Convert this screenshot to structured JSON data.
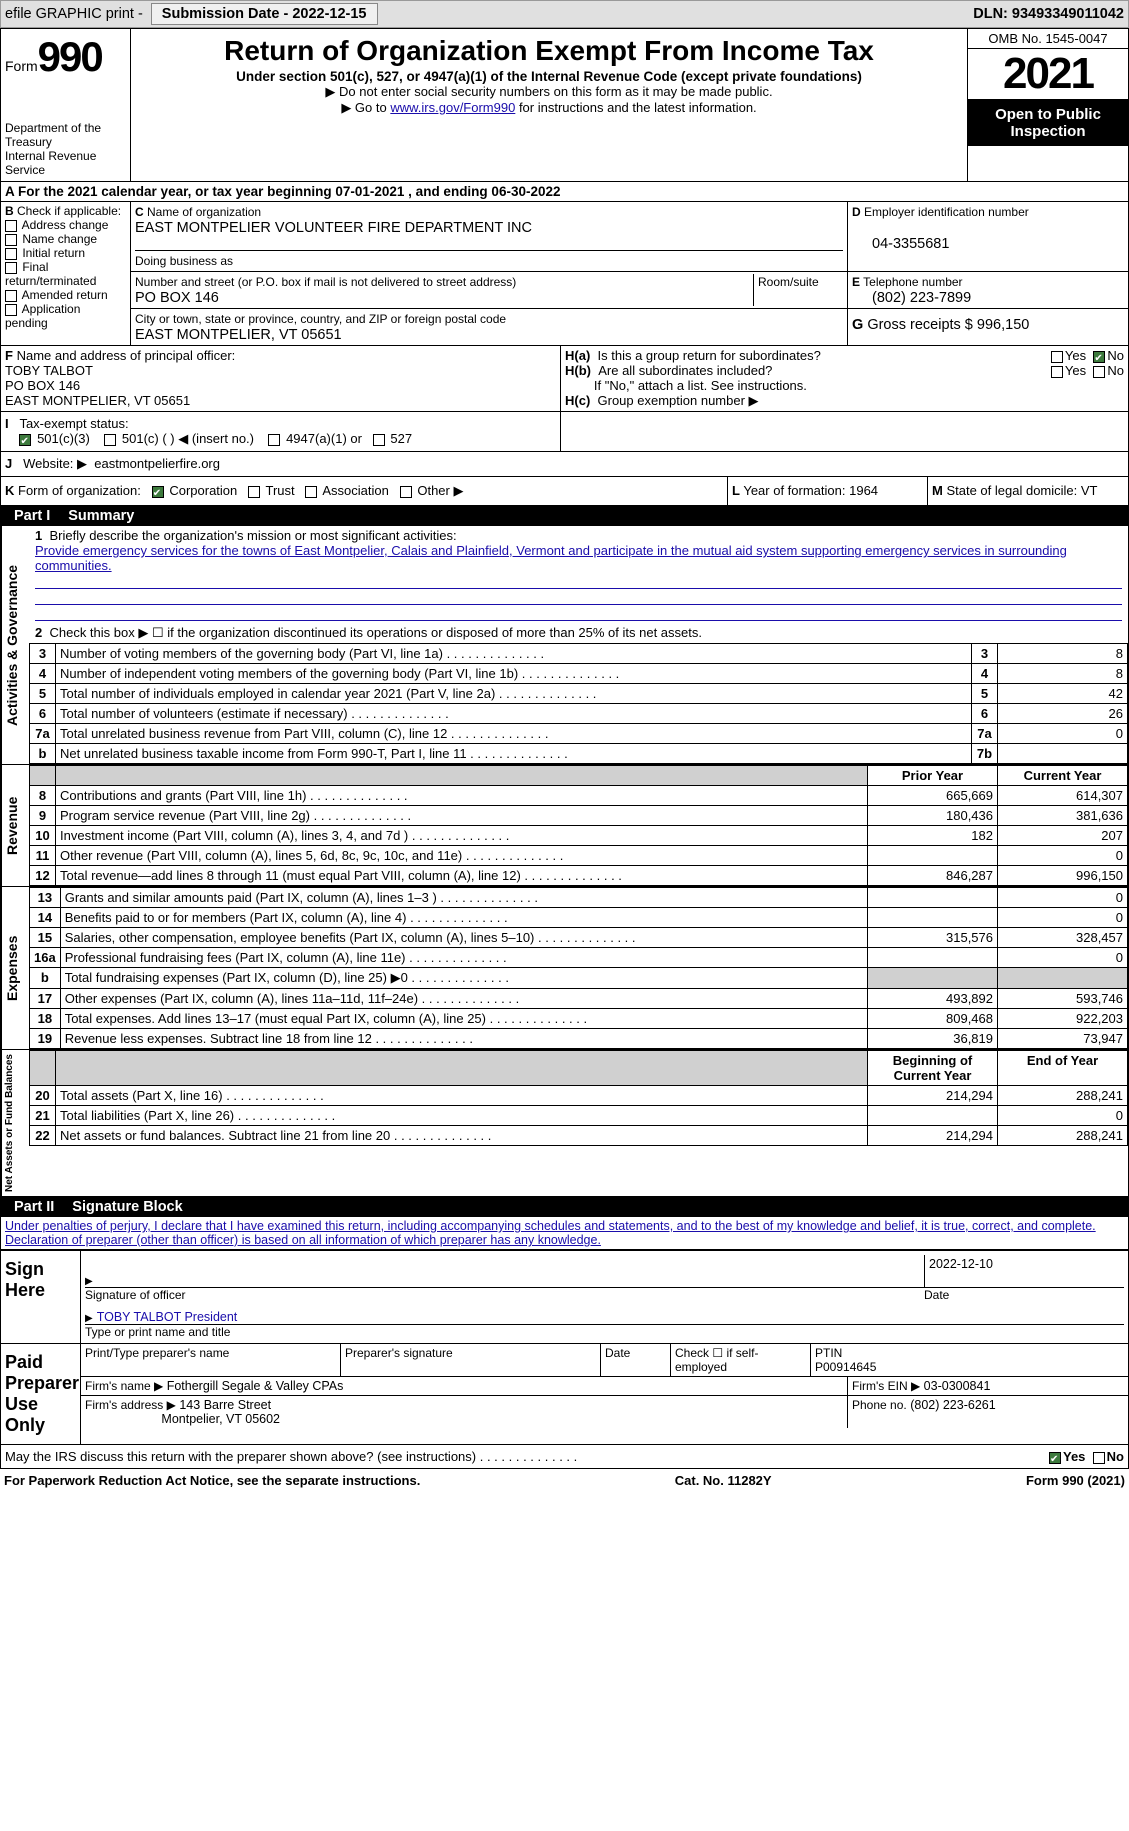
{
  "header": {
    "efile": "efile GRAPHIC print -",
    "submission": "Submission Date - 2022-12-15",
    "dln": "DLN: 93493349011042"
  },
  "form": {
    "form_word": "Form",
    "form_num": "990",
    "dept": "Department of the Treasury",
    "irs": "Internal Revenue Service",
    "title": "Return of Organization Exempt From Income Tax",
    "sub": "Under section 501(c), 527, or 4947(a)(1) of the Internal Revenue Code (except private foundations)",
    "note1": "▶ Do not enter social security numbers on this form as it may be made public.",
    "note2_pre": "▶ Go to ",
    "note2_link": "www.irs.gov/Form990",
    "note2_post": " for instructions and the latest information.",
    "omb": "OMB No. 1545-0047",
    "year": "2021",
    "inspection": "Open to Public Inspection"
  },
  "periodA": "For the 2021 calendar year, or tax year beginning 07-01-2021    , and ending 06-30-2022",
  "B": {
    "title": "Check if applicable:",
    "items": [
      "Address change",
      "Name change",
      "Initial return",
      "Final return/terminated",
      "Amended return",
      "Application pending"
    ]
  },
  "C": {
    "label_name": "Name of organization",
    "org_name": "EAST MONTPELIER VOLUNTEER FIRE DEPARTMENT INC",
    "dba_label": "Doing business as",
    "addr_label": "Number and street (or P.O. box if mail is not delivered to street address)",
    "room_label": "Room/suite",
    "addr": "PO BOX 146",
    "city_label": "City or town, state or province, country, and ZIP or foreign postal code",
    "city": "EAST MONTPELIER, VT  05651"
  },
  "D": {
    "label": "Employer identification number",
    "value": "04-3355681"
  },
  "E": {
    "label": "Telephone number",
    "value": "(802) 223-7899"
  },
  "G": {
    "label": "Gross receipts $",
    "value": "996,150"
  },
  "F": {
    "label": "Name and address of principal officer:",
    "name": "TOBY TALBOT",
    "addr": "PO BOX 146",
    "city": "EAST MONTPELIER, VT  05651"
  },
  "H": {
    "a": "Is this a group return for subordinates?",
    "a_yes": "Yes",
    "a_no": "No",
    "b": "Are all subordinates included?",
    "b_yes": "Yes",
    "b_no": "No",
    "b_note": "If \"No,\" attach a list. See instructions.",
    "c": "Group exemption number ▶"
  },
  "I": {
    "label": "Tax-exempt status:",
    "opt1": "501(c)(3)",
    "opt2": "501(c) (  ) ◀ (insert no.)",
    "opt3": "4947(a)(1) or",
    "opt4": "527"
  },
  "J": {
    "label": "Website: ▶",
    "value": "eastmontpelierfire.org"
  },
  "K": {
    "label": "Form of organization:",
    "opts": [
      "Corporation",
      "Trust",
      "Association",
      "Other ▶"
    ]
  },
  "L": {
    "label": "Year of formation:",
    "value": "1964"
  },
  "M": {
    "label": "State of legal domicile:",
    "value": "VT"
  },
  "part1": {
    "num": "Part I",
    "title": "Summary"
  },
  "summary": {
    "line1_label": "Briefly describe the organization's mission or most significant activities:",
    "line1_text": "Provide emergency services for the towns of East Montpelier, Calais and Plainfield, Vermont and participate in the mutual aid system supporting emergency services in surrounding communities.",
    "line2": "Check this box ▶ ☐ if the organization discontinued its operations or disposed of more than 25% of its net assets.",
    "rows_ag": [
      {
        "n": "3",
        "label": "Number of voting members of the governing body (Part VI, line 1a)",
        "box": "3",
        "val": "8"
      },
      {
        "n": "4",
        "label": "Number of independent voting members of the governing body (Part VI, line 1b)",
        "box": "4",
        "val": "8"
      },
      {
        "n": "5",
        "label": "Total number of individuals employed in calendar year 2021 (Part V, line 2a)",
        "box": "5",
        "val": "42"
      },
      {
        "n": "6",
        "label": "Total number of volunteers (estimate if necessary)",
        "box": "6",
        "val": "26"
      },
      {
        "n": "7a",
        "label": "Total unrelated business revenue from Part VIII, column (C), line 12",
        "box": "7a",
        "val": "0"
      },
      {
        "n": "b",
        "label": "Net unrelated business taxable income from Form 990-T, Part I, line 11",
        "box": "7b",
        "val": ""
      }
    ],
    "prior_hdr": "Prior Year",
    "current_hdr": "Current Year",
    "rev": [
      {
        "n": "8",
        "label": "Contributions and grants (Part VIII, line 1h)",
        "p": "665,669",
        "c": "614,307"
      },
      {
        "n": "9",
        "label": "Program service revenue (Part VIII, line 2g)",
        "p": "180,436",
        "c": "381,636"
      },
      {
        "n": "10",
        "label": "Investment income (Part VIII, column (A), lines 3, 4, and 7d )",
        "p": "182",
        "c": "207"
      },
      {
        "n": "11",
        "label": "Other revenue (Part VIII, column (A), lines 5, 6d, 8c, 9c, 10c, and 11e)",
        "p": "",
        "c": "0"
      },
      {
        "n": "12",
        "label": "Total revenue—add lines 8 through 11 (must equal Part VIII, column (A), line 12)",
        "p": "846,287",
        "c": "996,150"
      }
    ],
    "exp": [
      {
        "n": "13",
        "label": "Grants and similar amounts paid (Part IX, column (A), lines 1–3 )",
        "p": "",
        "c": "0"
      },
      {
        "n": "14",
        "label": "Benefits paid to or for members (Part IX, column (A), line 4)",
        "p": "",
        "c": "0"
      },
      {
        "n": "15",
        "label": "Salaries, other compensation, employee benefits (Part IX, column (A), lines 5–10)",
        "p": "315,576",
        "c": "328,457"
      },
      {
        "n": "16a",
        "label": "Professional fundraising fees (Part IX, column (A), line 11e)",
        "p": "",
        "c": "0"
      },
      {
        "n": "b",
        "label": "Total fundraising expenses (Part IX, column (D), line 25) ▶0",
        "p": "GREY",
        "c": "GREY"
      },
      {
        "n": "17",
        "label": "Other expenses (Part IX, column (A), lines 11a–11d, 11f–24e)",
        "p": "493,892",
        "c": "593,746"
      },
      {
        "n": "18",
        "label": "Total expenses. Add lines 13–17 (must equal Part IX, column (A), line 25)",
        "p": "809,468",
        "c": "922,203"
      },
      {
        "n": "19",
        "label": "Revenue less expenses. Subtract line 18 from line 12",
        "p": "36,819",
        "c": "73,947"
      }
    ],
    "na_hdr1": "Beginning of Current Year",
    "na_hdr2": "End of Year",
    "na": [
      {
        "n": "20",
        "label": "Total assets (Part X, line 16)",
        "p": "214,294",
        "c": "288,241"
      },
      {
        "n": "21",
        "label": "Total liabilities (Part X, line 26)",
        "p": "",
        "c": "0"
      },
      {
        "n": "22",
        "label": "Net assets or fund balances. Subtract line 21 from line 20",
        "p": "214,294",
        "c": "288,241"
      }
    ],
    "side_labels": {
      "ag": "Activities & Governance",
      "rev": "Revenue",
      "exp": "Expenses",
      "na": "Net Assets or Fund Balances"
    }
  },
  "part2": {
    "num": "Part II",
    "title": "Signature Block"
  },
  "sig": {
    "decl": "Under penalties of perjury, I declare that I have examined this return, including accompanying schedules and statements, and to the best of my knowledge and belief, it is true, correct, and complete. Declaration of preparer (other than officer) is based on all information of which preparer has any knowledge.",
    "sign_here": "Sign Here",
    "sig_officer": "Signature of officer",
    "date_label": "Date",
    "date": "2022-12-10",
    "name_title": "TOBY TALBOT President",
    "name_label": "Type or print name and title",
    "paid": "Paid Preparer Use Only",
    "prep_name_label": "Print/Type preparer's name",
    "prep_sig_label": "Preparer's signature",
    "prep_date": "Date",
    "self_emp": "Check ☐ if self-employed",
    "ptin_label": "PTIN",
    "ptin": "P00914645",
    "firm_name_label": "Firm's name    ▶",
    "firm_name": "Fothergill Segale & Valley CPAs",
    "firm_ein_label": "Firm's EIN ▶",
    "firm_ein": "03-0300841",
    "firm_addr_label": "Firm's address ▶",
    "firm_addr": "143 Barre Street",
    "firm_city": "Montpelier, VT  05602",
    "phone_label": "Phone no.",
    "phone": "(802) 223-6261",
    "discuss": "May the IRS discuss this return with the preparer shown above? (see instructions)",
    "yes": "Yes",
    "no": "No"
  },
  "footer": {
    "left": "For Paperwork Reduction Act Notice, see the separate instructions.",
    "mid": "Cat. No. 11282Y",
    "right": "Form 990 (2021)"
  }
}
